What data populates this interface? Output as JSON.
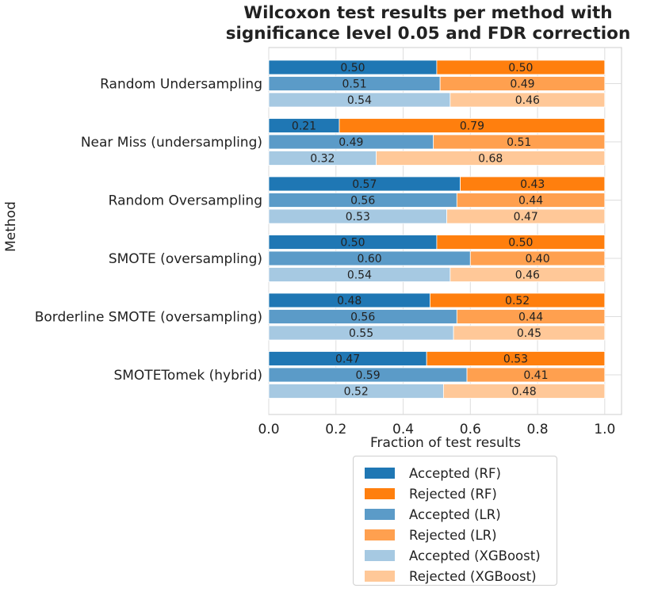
{
  "chart_data": {
    "type": "bar",
    "orientation": "horizontal",
    "stacked": true,
    "title": "Wilcoxon test results per method with significance level 0.05 and FDR correction",
    "title_lines": [
      "Wilcoxon test results per method with",
      "significance level 0.05 and FDR correction"
    ],
    "xlabel": "Fraction of test results",
    "ylabel": "Method",
    "xlim": [
      0.0,
      1.05
    ],
    "xticks": [
      "0.0",
      "0.2",
      "0.4",
      "0.6",
      "0.8",
      "1.0"
    ],
    "grid": true,
    "categories": [
      "Random Undersampling",
      "Near Miss (undersampling)",
      "Random Oversampling",
      "SMOTE (oversampling)",
      "Borderline SMOTE (oversampling)",
      "SMOTETomek (hybrid)"
    ],
    "models": [
      {
        "name": "RF",
        "accepted_color": "#1f77b4",
        "rejected_color": "#ff7f0e",
        "accepted": [
          0.5,
          0.21,
          0.57,
          0.5,
          0.48,
          0.47
        ],
        "rejected": [
          0.5,
          0.79,
          0.43,
          0.5,
          0.52,
          0.53
        ]
      },
      {
        "name": "LR",
        "accepted_color": "#5b9bc8",
        "rejected_color": "#ffa04f",
        "accepted": [
          0.51,
          0.49,
          0.56,
          0.6,
          0.56,
          0.59
        ],
        "rejected": [
          0.49,
          0.51,
          0.44,
          0.4,
          0.44,
          0.41
        ]
      },
      {
        "name": "XGBoost",
        "accepted_color": "#a6c9e2",
        "rejected_color": "#ffc898",
        "accepted": [
          0.54,
          0.32,
          0.53,
          0.54,
          0.55,
          0.52
        ],
        "rejected": [
          0.46,
          0.68,
          0.47,
          0.46,
          0.45,
          0.48
        ]
      }
    ],
    "legend": {
      "placement": "bottom-center, below x-axis",
      "entries": [
        {
          "label": "Accepted (RF)",
          "color": "#1f77b4"
        },
        {
          "label": "Rejected (RF)",
          "color": "#ff7f0e"
        },
        {
          "label": "Accepted (LR)",
          "color": "#5b9bc8"
        },
        {
          "label": "Rejected (LR)",
          "color": "#ffa04f"
        },
        {
          "label": "Accepted (XGBoost)",
          "color": "#a6c9e2"
        },
        {
          "label": "Rejected (XGBoost)",
          "color": "#ffc898"
        }
      ]
    }
  }
}
